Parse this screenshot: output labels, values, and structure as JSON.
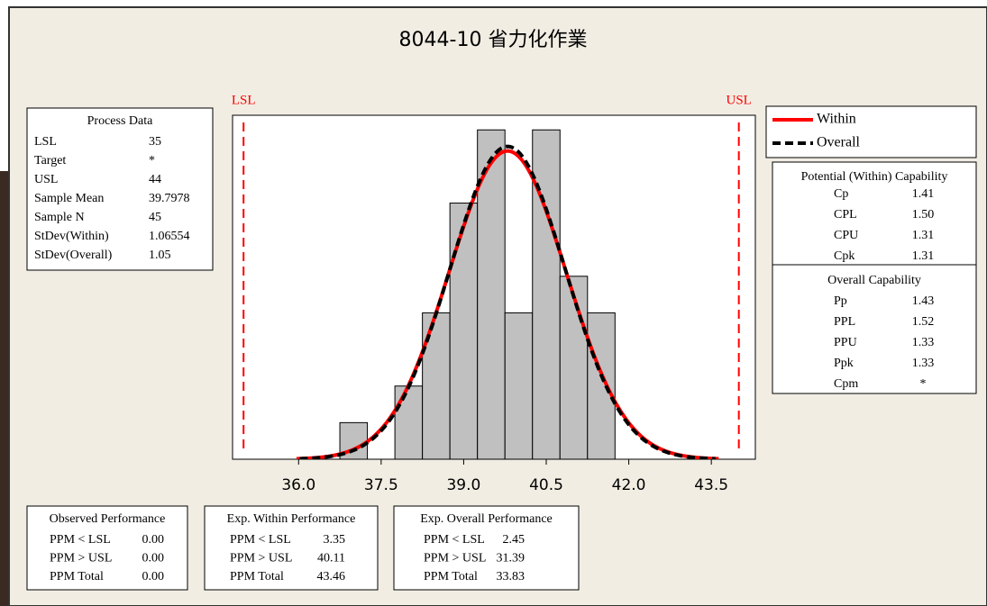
{
  "chart_data": {
    "type": "histogram",
    "title": "8044-10 省力化作業",
    "bins": [
      36.75,
      37.25,
      37.75,
      38.25,
      38.75,
      39.25,
      39.75,
      40.25,
      40.75,
      41.25,
      41.75
    ],
    "counts": [
      1,
      0,
      2,
      4,
      7,
      9,
      4,
      9,
      5,
      4
    ],
    "color": "#c0c0c0",
    "xlim": [
      34.8,
      44.3
    ],
    "xticks": [
      {
        "value": 36,
        "label": "36.0"
      },
      37.5,
      {
        "value": 39,
        "label": "39.0"
      },
      40.5,
      {
        "value": 42,
        "label": "42.0"
      },
      43.5
    ],
    "ylim": [
      0,
      9.4
    ],
    "lsl_label": "LSL",
    "usl_label": "USL",
    "spec_color": "#ff0000",
    "curves": [
      {
        "name": "Within",
        "color": "#ff0000",
        "line_style": "solid"
      },
      {
        "name": "Overall",
        "color": "#000000",
        "line_style": "dashed"
      }
    ]
  },
  "process_data": {
    "title": "Process Data",
    "rows": [
      {
        "label": "LSL",
        "value": 35
      },
      {
        "label": "Target",
        "value": "*"
      },
      {
        "label": "USL",
        "value": 44
      },
      {
        "label": "Sample Mean",
        "value": 39.7978
      },
      {
        "label": "Sample N",
        "value": 45
      },
      {
        "label": "StDev(Within)",
        "value": 1.06554
      },
      {
        "label": "StDev(Overall)",
        "value": 1.05
      }
    ]
  },
  "potential_capability": {
    "title": "Potential (Within) Capability",
    "rows": [
      {
        "label": "Cp",
        "value": "1.41"
      },
      {
        "label": "CPL",
        "value": "1.50"
      },
      {
        "label": "CPU",
        "value": "1.31"
      },
      {
        "label": "Cpk",
        "value": "1.31"
      }
    ]
  },
  "overall_capability": {
    "title": "Overall Capability",
    "rows": [
      {
        "label": "Pp",
        "value": "1.43"
      },
      {
        "label": "PPL",
        "value": "1.52"
      },
      {
        "label": "PPU",
        "value": "1.33"
      },
      {
        "label": "Ppk",
        "value": "1.33"
      },
      {
        "label": "Cpm",
        "value": "*"
      }
    ]
  },
  "observed_performance": {
    "title": "Observed Performance",
    "rows": [
      {
        "label": "PPM < LSL",
        "value": "0.00"
      },
      {
        "label": "PPM > USL",
        "value": "0.00"
      },
      {
        "label": "PPM Total",
        "value": "0.00"
      }
    ]
  },
  "exp_within_performance": {
    "title": "Exp. Within Performance",
    "rows": [
      {
        "label": "PPM < LSL",
        "value": "3.35"
      },
      {
        "label": "PPM > USL",
        "value": "40.11"
      },
      {
        "label": "PPM Total",
        "value": "43.46"
      }
    ]
  },
  "exp_overall_performance": {
    "title": "Exp. Overall Performance",
    "rows": [
      {
        "label": "PPM < LSL",
        "value": "2.45"
      },
      {
        "label": "PPM > USL",
        "value": "31.39"
      },
      {
        "label": "PPM Total",
        "value": "33.83"
      }
    ]
  }
}
